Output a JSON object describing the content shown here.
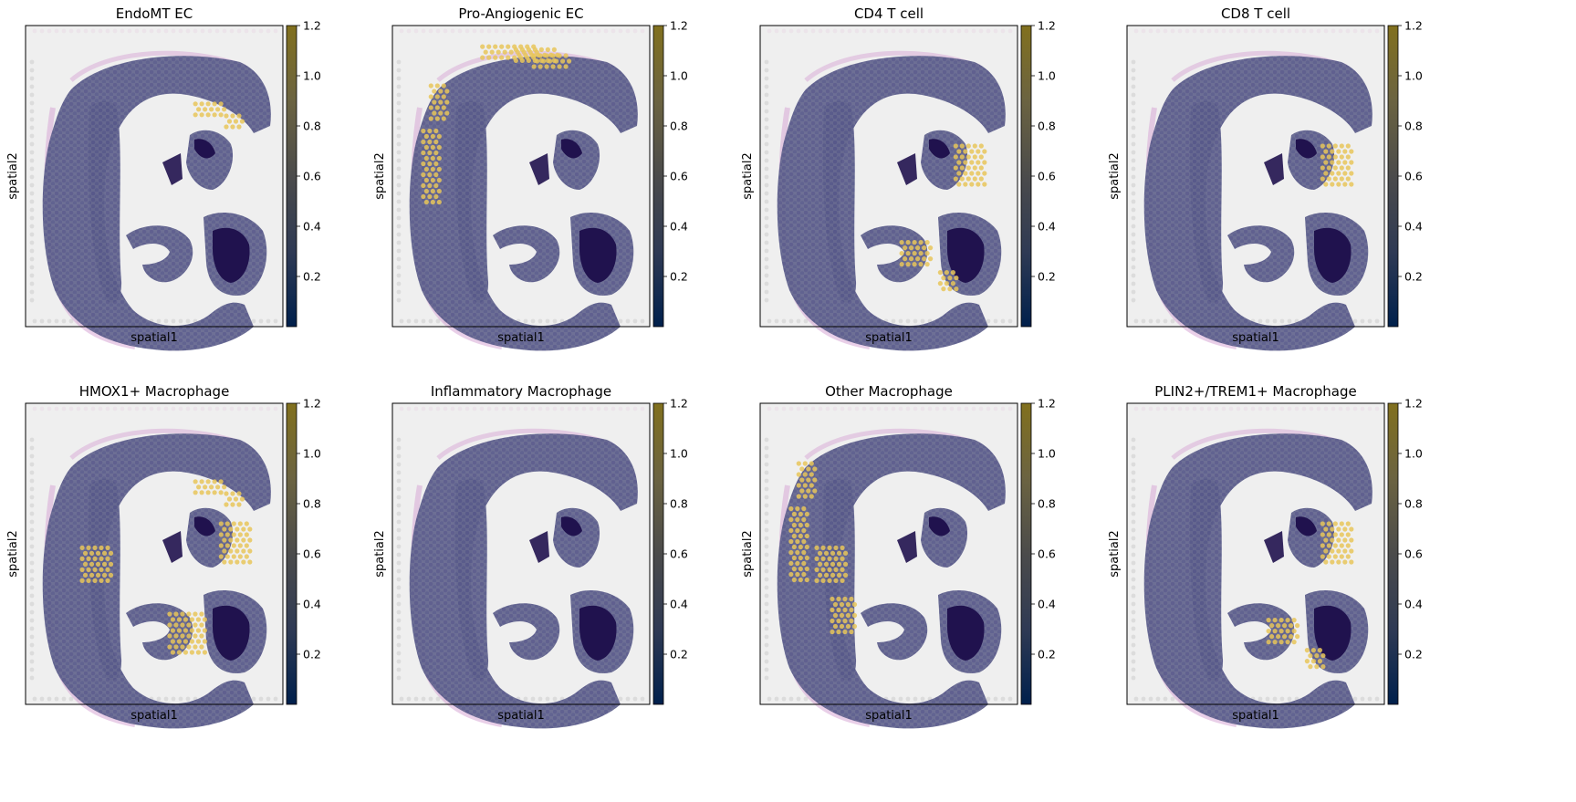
{
  "chart_data": [
    {
      "type": "heatmap",
      "title": "EndoMT EC",
      "xlabel": "spatial1",
      "ylabel": "spatial2",
      "colorbar": {
        "ticks": [
          "0.2",
          "0.4",
          "0.6",
          "0.8",
          "1.0",
          "1.2"
        ],
        "vmax": 1.2,
        "colormap": "cividis"
      },
      "high_regions": [
        "upper-right arc"
      ]
    },
    {
      "type": "heatmap",
      "title": "Pro-Angiogenic EC",
      "xlabel": "spatial1",
      "ylabel": "spatial2",
      "colorbar": {
        "ticks": [
          "0.2",
          "0.4",
          "0.6",
          "0.8",
          "1.0",
          "1.2"
        ],
        "vmax": 1.2,
        "colormap": "cividis"
      },
      "high_regions": [
        "outer rim",
        "top arc",
        "left border"
      ]
    },
    {
      "type": "heatmap",
      "title": "CD4 T cell",
      "xlabel": "spatial1",
      "ylabel": "spatial2",
      "colorbar": {
        "ticks": [
          "0.2",
          "0.4",
          "0.6",
          "0.8",
          "1.0",
          "1.2"
        ],
        "vmax": 1.2,
        "colormap": "cividis"
      },
      "high_regions": [
        "right-center cluster",
        "lower-center patch"
      ]
    },
    {
      "type": "heatmap",
      "title": "CD8 T cell",
      "xlabel": "spatial1",
      "ylabel": "spatial2",
      "colorbar": {
        "ticks": [
          "0.2",
          "0.4",
          "0.6",
          "0.8",
          "1.0",
          "1.2"
        ],
        "vmax": 1.2,
        "colormap": "cividis"
      },
      "high_regions": [
        "right-center cluster"
      ]
    },
    {
      "type": "heatmap",
      "title": "HMOX1+ Macrophage",
      "xlabel": "spatial1",
      "ylabel": "spatial2",
      "colorbar": {
        "ticks": [
          "0.2",
          "0.4",
          "0.6",
          "0.8",
          "1.0",
          "1.2"
        ],
        "vmax": 1.2,
        "colormap": "cividis"
      },
      "high_regions": [
        "upper-right arc",
        "right-center cluster",
        "left-center",
        "lower-center"
      ]
    },
    {
      "type": "heatmap",
      "title": "Inflammatory Macrophage",
      "xlabel": "spatial1",
      "ylabel": "spatial2",
      "colorbar": {
        "ticks": [
          "0.2",
          "0.4",
          "0.6",
          "0.8",
          "1.0",
          "1.2"
        ],
        "vmax": 1.2,
        "colormap": "cividis"
      },
      "high_regions": []
    },
    {
      "type": "heatmap",
      "title": "Other Macrophage",
      "xlabel": "spatial1",
      "ylabel": "spatial2",
      "colorbar": {
        "ticks": [
          "0.2",
          "0.4",
          "0.6",
          "0.8",
          "1.0",
          "1.2"
        ],
        "vmax": 1.2,
        "colormap": "cividis"
      },
      "high_regions": [
        "left border",
        "left-center",
        "lower-left"
      ]
    },
    {
      "type": "heatmap",
      "title": "PLIN2+/TREM1+ Macrophage",
      "xlabel": "spatial1",
      "ylabel": "spatial2",
      "colorbar": {
        "ticks": [
          "0.2",
          "0.4",
          "0.6",
          "0.8",
          "1.0",
          "1.2"
        ],
        "vmax": 1.2,
        "colormap": "cividis"
      },
      "high_regions": [
        "right-center cluster",
        "lower-center patch"
      ]
    }
  ],
  "colors": {
    "background": "#efefef",
    "tissue_spot": "#5c5e88",
    "high_spot": "#e8c65a",
    "dense_core": "#20124e",
    "fibrous": "#d7a8d6",
    "colormap_low": "#00204c",
    "colormap_mid": "#7c7b78",
    "colormap_high": "#7f6a1a"
  }
}
